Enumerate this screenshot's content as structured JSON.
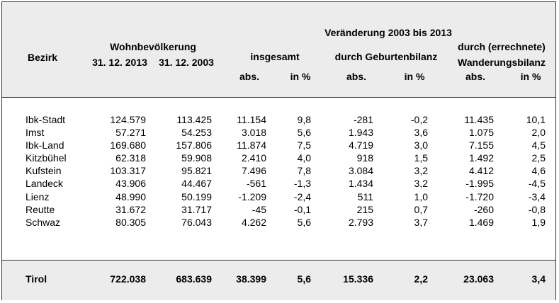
{
  "header": {
    "bezirk": "Bezirk",
    "wohnbev": "Wohnbevölkerung",
    "date2013": "31. 12. 2013",
    "date2003": "31. 12. 2003",
    "veraenderung": "Veränderung 2003 bis 2013",
    "insgesamt": "insgesamt",
    "geburtenbilanz": "durch Geburtenbilanz",
    "errechnete": "durch (errechnete)",
    "wanderungsbilanz": "Wanderungsbilanz",
    "abs": "abs.",
    "inpct": "in %"
  },
  "rows": [
    [
      "Ibk-Stadt",
      "124.579",
      "113.425",
      "11.154",
      "9,8",
      "-281",
      "-0,2",
      "11.435",
      "10,1"
    ],
    [
      "Imst",
      "57.271",
      "54.253",
      "3.018",
      "5,6",
      "1.943",
      "3,6",
      "1.075",
      "2,0"
    ],
    [
      "Ibk-Land",
      "169.680",
      "157.806",
      "11.874",
      "7,5",
      "4.719",
      "3,0",
      "7.155",
      "4,5"
    ],
    [
      "Kitzbühel",
      "62.318",
      "59.908",
      "2.410",
      "4,0",
      "918",
      "1,5",
      "1.492",
      "2,5"
    ],
    [
      "Kufstein",
      "103.317",
      "95.821",
      "7.496",
      "7,8",
      "3.084",
      "3,2",
      "4.412",
      "4,6"
    ],
    [
      "Landeck",
      "43.906",
      "44.467",
      "-561",
      "-1,3",
      "1.434",
      "3,2",
      "-1.995",
      "-4,5"
    ],
    [
      "Lienz",
      "48.990",
      "50.199",
      "-1.209",
      "-2,4",
      "511",
      "1,0",
      "-1.720",
      "-3,4"
    ],
    [
      "Reutte",
      "31.672",
      "31.717",
      "-45",
      "-0,1",
      "215",
      "0,7",
      "-260",
      "-0,8"
    ],
    [
      "Schwaz",
      "80.305",
      "76.043",
      "4.262",
      "5,6",
      "2.793",
      "3,7",
      "1.469",
      "1,9"
    ]
  ],
  "total": [
    "Tirol",
    "722.038",
    "683.639",
    "38.399",
    "5,6",
    "15.336",
    "2,2",
    "23.063",
    "3,4"
  ]
}
